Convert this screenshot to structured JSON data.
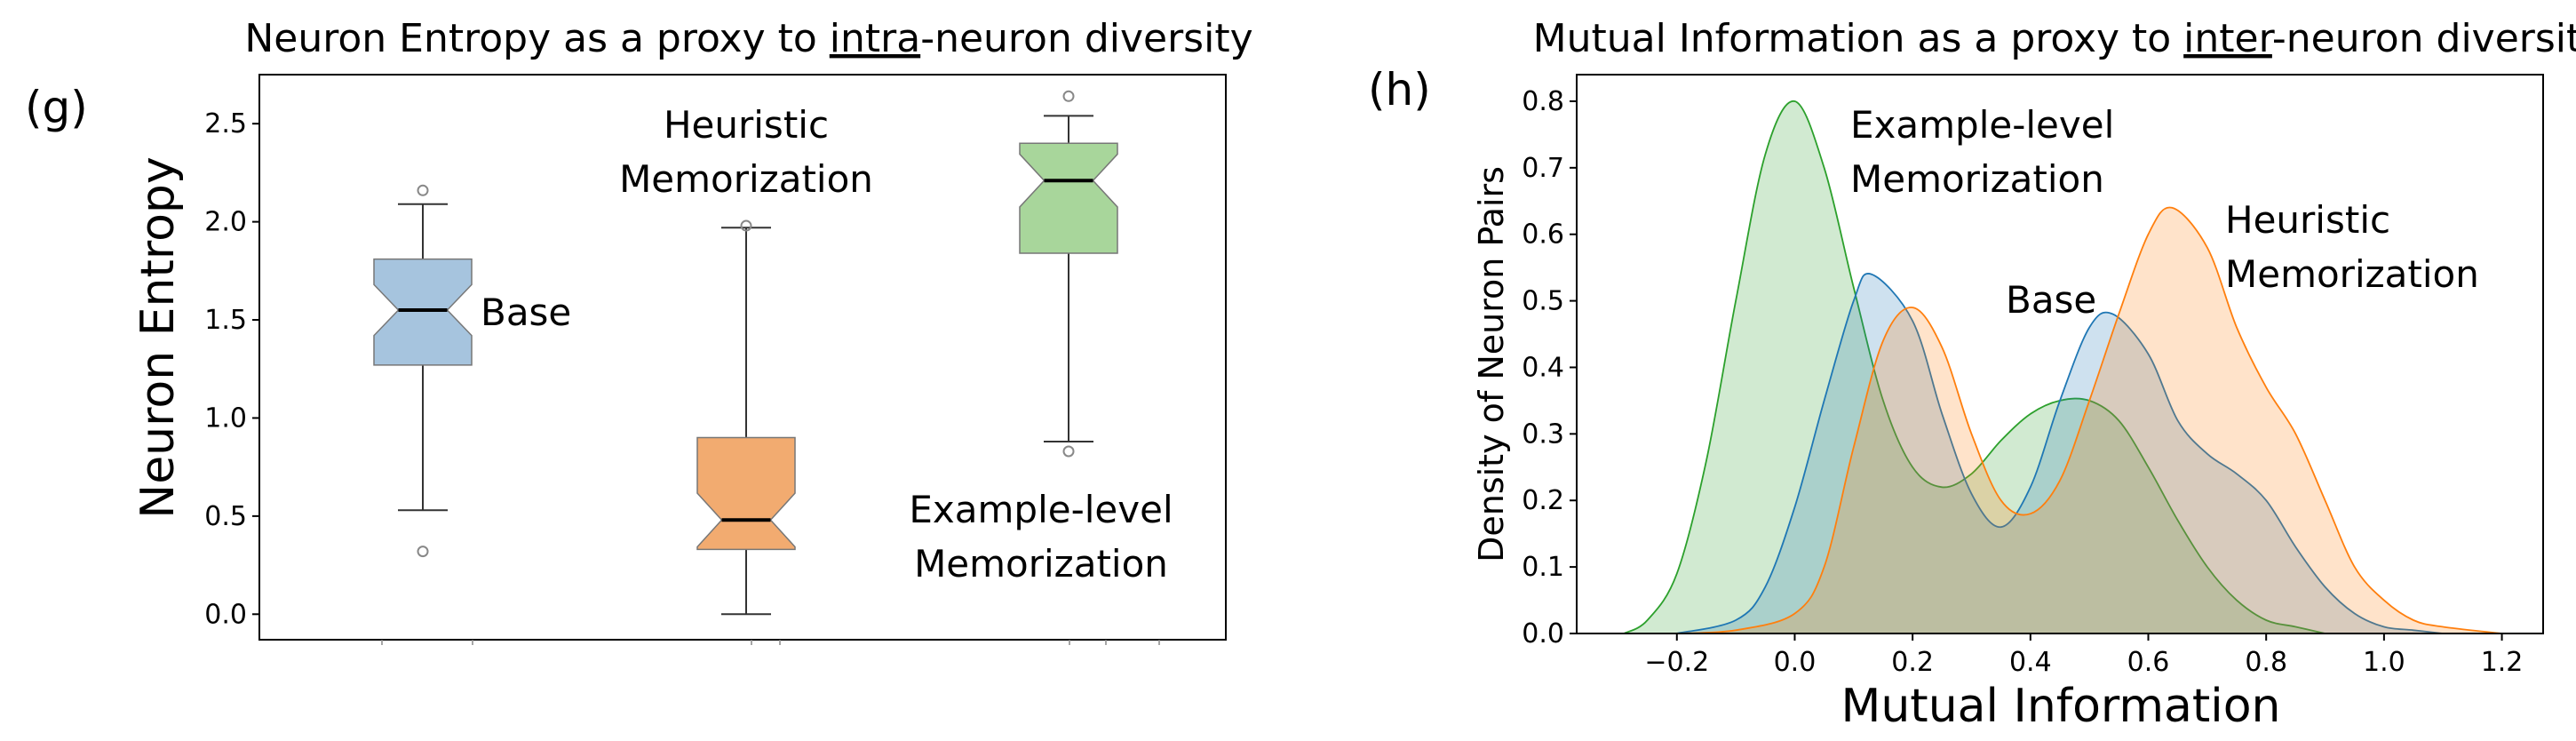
{
  "colors": {
    "base": "#1f77b4",
    "heuristic": "#ff7f0e",
    "example": "#2ca02c"
  },
  "chart_data": [
    {
      "panel": "(g)",
      "type": "box",
      "title": {
        "pre": "Neuron Entropy as a proxy to ",
        "underlined": "intra",
        "post": "-neuron diversity"
      },
      "ylabel": "Neuron Entropy",
      "xlabel": "",
      "ylim": [
        -0.13,
        2.75
      ],
      "yticks": [
        0.0,
        0.5,
        1.0,
        1.5,
        2.0,
        2.5
      ],
      "ytick_labels": [
        "0.0",
        "0.5",
        "1.0",
        "1.5",
        "2.0",
        "2.5"
      ],
      "grid": false,
      "notched": true,
      "boxes": [
        {
          "key": "base",
          "label": "Base",
          "whisker_low": 0.53,
          "q1": 1.27,
          "median": 1.55,
          "q3": 1.81,
          "whisker_high": 2.09,
          "outliers": [
            2.16,
            0.32
          ]
        },
        {
          "key": "heuristic",
          "label_lines": [
            "Heuristic",
            "Memorization"
          ],
          "whisker_low": 0.0,
          "q1": 0.33,
          "median": 0.48,
          "q3": 0.9,
          "whisker_high": 1.97,
          "outliers": [
            1.98
          ]
        },
        {
          "key": "example",
          "label_lines": [
            "Example-level",
            "Memorization"
          ],
          "whisker_low": 0.88,
          "q1": 1.84,
          "median": 2.21,
          "q3": 2.4,
          "whisker_high": 2.54,
          "outliers": [
            2.64,
            0.83
          ]
        }
      ]
    },
    {
      "panel": "(h)",
      "type": "area",
      "title": {
        "pre": "Mutual Information as a proxy to ",
        "underlined": "inter",
        "post": "-neuron diversity"
      },
      "xlabel": "Mutual Information",
      "ylabel": "Density of Neuron Pairs",
      "xlim": [
        -0.37,
        1.27
      ],
      "ylim": [
        0.0,
        0.84
      ],
      "xticks": [
        -0.2,
        0.0,
        0.2,
        0.4,
        0.6,
        0.8,
        1.0,
        1.2
      ],
      "xtick_labels": [
        "−0.2",
        "0.0",
        "0.2",
        "0.4",
        "0.6",
        "0.8",
        "1.0",
        "1.2"
      ],
      "yticks": [
        0.0,
        0.1,
        0.2,
        0.3,
        0.4,
        0.5,
        0.6,
        0.7,
        0.8
      ],
      "ytick_labels": [
        "0.0",
        "0.1",
        "0.2",
        "0.3",
        "0.4",
        "0.5",
        "0.6",
        "0.7",
        "0.8"
      ],
      "grid": false,
      "series": [
        {
          "key": "example",
          "label_lines": [
            "Example-level",
            "Memorization"
          ],
          "x": [
            -0.29,
            -0.25,
            -0.2,
            -0.15,
            -0.1,
            -0.05,
            0.0,
            0.05,
            0.1,
            0.15,
            0.2,
            0.25,
            0.3,
            0.35,
            0.4,
            0.45,
            0.5,
            0.55,
            0.6,
            0.65,
            0.7,
            0.75,
            0.8,
            0.85,
            0.9
          ],
          "y": [
            0.0,
            0.02,
            0.09,
            0.26,
            0.5,
            0.72,
            0.8,
            0.7,
            0.52,
            0.35,
            0.25,
            0.22,
            0.24,
            0.29,
            0.33,
            0.35,
            0.35,
            0.32,
            0.25,
            0.17,
            0.1,
            0.05,
            0.02,
            0.01,
            0.0
          ]
        },
        {
          "key": "base",
          "label": "Base",
          "x": [
            -0.2,
            -0.1,
            -0.05,
            0.0,
            0.05,
            0.1,
            0.13,
            0.2,
            0.25,
            0.3,
            0.35,
            0.4,
            0.45,
            0.5,
            0.54,
            0.6,
            0.65,
            0.7,
            0.75,
            0.8,
            0.85,
            0.9,
            0.95,
            1.0,
            1.05,
            1.1
          ],
          "y": [
            0.0,
            0.02,
            0.07,
            0.19,
            0.35,
            0.5,
            0.54,
            0.47,
            0.33,
            0.21,
            0.16,
            0.22,
            0.35,
            0.46,
            0.48,
            0.42,
            0.32,
            0.27,
            0.24,
            0.2,
            0.13,
            0.07,
            0.03,
            0.01,
            0.005,
            0.0
          ]
        },
        {
          "key": "heuristic",
          "label_lines": [
            "Heuristic",
            "Memorization"
          ],
          "x": [
            -0.2,
            -0.1,
            0.0,
            0.05,
            0.1,
            0.15,
            0.2,
            0.25,
            0.3,
            0.35,
            0.4,
            0.45,
            0.5,
            0.55,
            0.6,
            0.64,
            0.7,
            0.75,
            0.8,
            0.85,
            0.9,
            0.95,
            1.0,
            1.05,
            1.1,
            1.2
          ],
          "y": [
            0.0,
            0.005,
            0.03,
            0.1,
            0.28,
            0.44,
            0.49,
            0.43,
            0.3,
            0.2,
            0.18,
            0.23,
            0.35,
            0.48,
            0.6,
            0.64,
            0.58,
            0.46,
            0.37,
            0.3,
            0.2,
            0.1,
            0.05,
            0.02,
            0.01,
            0.0
          ]
        }
      ]
    }
  ]
}
